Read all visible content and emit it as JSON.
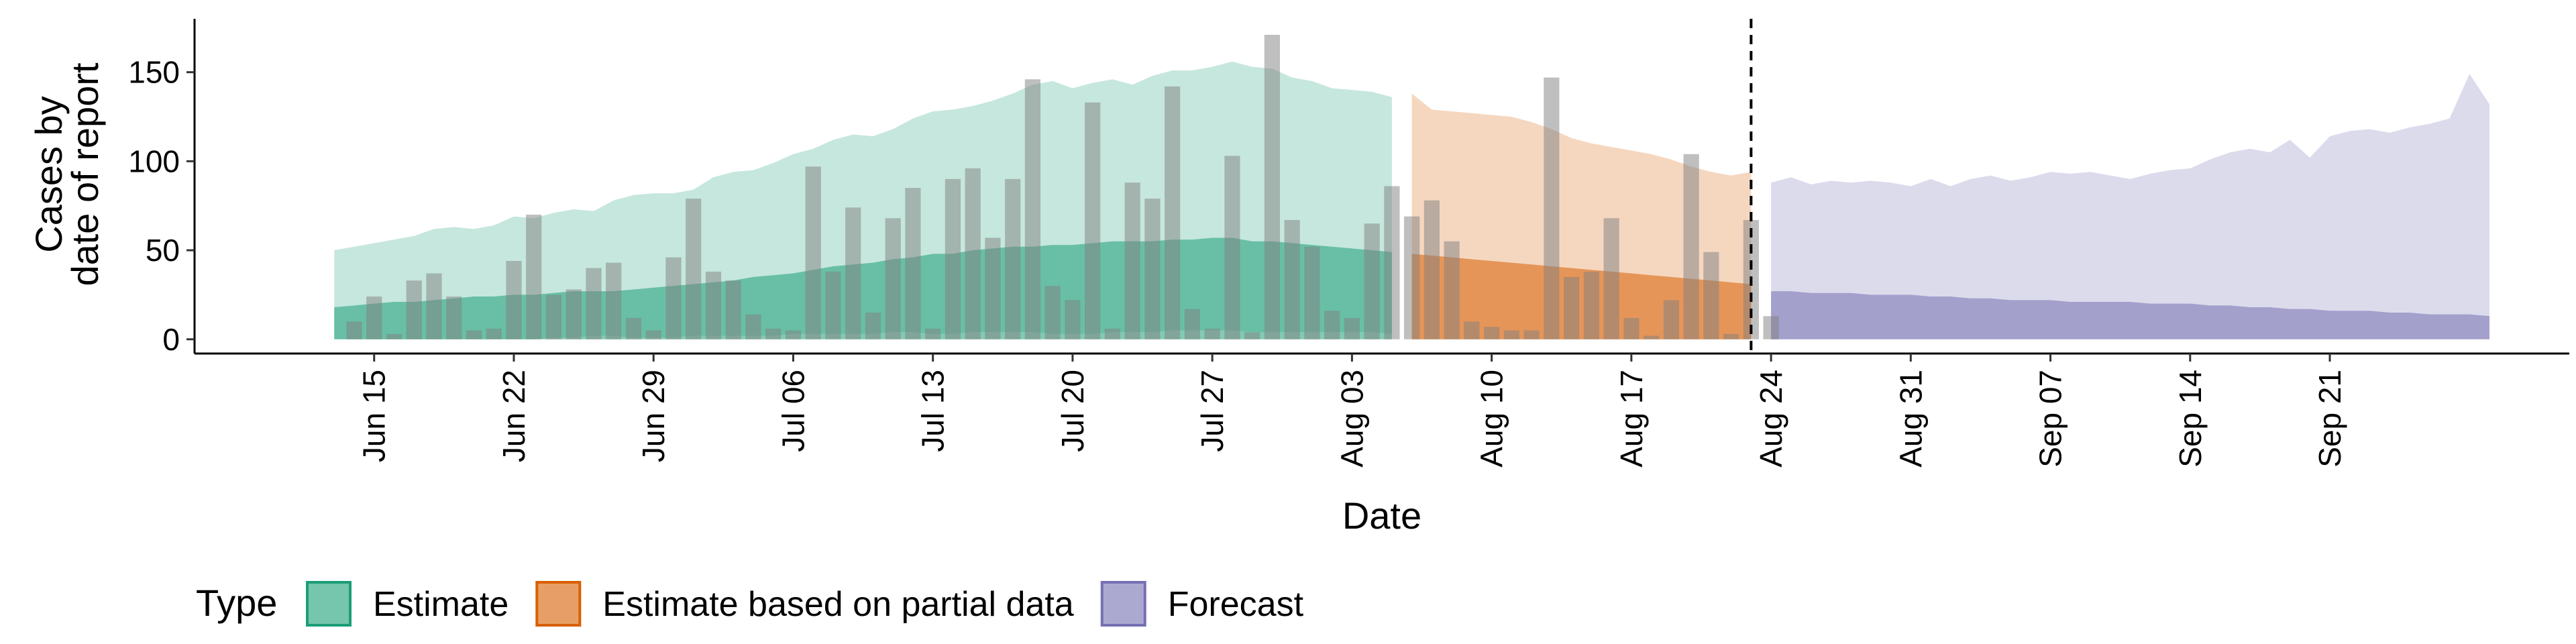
{
  "chart_data": {
    "type": "area",
    "xlabel": "Date",
    "ylabel": [
      "Cases by",
      "date of report"
    ],
    "ylim": [
      -8,
      180
    ],
    "y_ticks": [
      0,
      50,
      100,
      150
    ],
    "x_ticks": [
      {
        "date": "2020-06-15",
        "label": "Jun 15"
      },
      {
        "date": "2020-06-22",
        "label": "Jun 22"
      },
      {
        "date": "2020-06-29",
        "label": "Jun 29"
      },
      {
        "date": "2020-07-06",
        "label": "Jul 06"
      },
      {
        "date": "2020-07-13",
        "label": "Jul 13"
      },
      {
        "date": "2020-07-20",
        "label": "Jul 20"
      },
      {
        "date": "2020-07-27",
        "label": "Jul 27"
      },
      {
        "date": "2020-08-03",
        "label": "Aug 03"
      },
      {
        "date": "2020-08-10",
        "label": "Aug 10"
      },
      {
        "date": "2020-08-17",
        "label": "Aug 17"
      },
      {
        "date": "2020-08-24",
        "label": "Aug 24"
      },
      {
        "date": "2020-08-31",
        "label": "Aug 31"
      },
      {
        "date": "2020-09-07",
        "label": "Sep 07"
      },
      {
        "date": "2020-09-14",
        "label": "Sep 14"
      },
      {
        "date": "2020-09-21",
        "label": "Sep 21"
      }
    ],
    "xlim": [
      "2020-06-06",
      "2020-10-03"
    ],
    "vline_date": "2020-08-23",
    "grid": false,
    "legend": {
      "position": "bottom",
      "title": "Type",
      "entries": [
        {
          "label": "Estimate",
          "color": "#1B9E77"
        },
        {
          "label": "Estimate based on partial data",
          "color": "#D95F02"
        },
        {
          "label": "Forecast",
          "color": "#7570B3"
        }
      ]
    },
    "bars": {
      "color": "#808080",
      "start_date": "2020-06-14",
      "values": [
        10,
        24,
        3,
        33,
        37,
        24,
        5,
        6,
        44,
        70,
        25,
        28,
        40,
        43,
        12,
        5,
        46,
        79,
        38,
        33,
        14,
        6,
        5,
        97,
        38,
        74,
        15,
        68,
        85,
        6,
        90,
        96,
        57,
        90,
        146,
        30,
        22,
        133,
        6,
        88,
        79,
        142,
        17,
        6,
        103,
        4,
        171,
        67,
        52,
        16,
        12,
        65,
        86,
        69,
        78,
        55,
        10,
        7,
        5,
        5,
        147,
        35,
        38,
        68,
        12,
        2,
        22,
        104,
        49,
        3,
        67,
        13
      ]
    },
    "series": [
      {
        "name": "Estimate",
        "color": "#1B9E77",
        "start_date": "2020-06-13",
        "outer_upper": [
          50,
          52,
          54,
          56,
          58,
          62,
          63,
          62,
          64,
          69,
          68,
          71,
          73,
          72,
          78,
          81,
          82,
          82,
          84,
          91,
          94,
          95,
          99,
          104,
          107,
          112,
          115,
          114,
          118,
          124,
          128,
          129,
          131,
          134,
          138,
          143,
          145,
          141,
          144,
          146,
          143,
          148,
          151,
          151,
          153,
          156,
          153,
          152,
          147,
          145,
          141,
          140,
          139,
          136
        ],
        "outer_lower": [
          0,
          0,
          0,
          0,
          0,
          0,
          0,
          0,
          0,
          0,
          0,
          1,
          1,
          2,
          2,
          1,
          1,
          1,
          2,
          2,
          2,
          2,
          2,
          3,
          3,
          3,
          3,
          3,
          4,
          4,
          3,
          3,
          4,
          4,
          4,
          4,
          3,
          3,
          3,
          4,
          4,
          4,
          5,
          5,
          5,
          5,
          4,
          4,
          4,
          4,
          4,
          4,
          4,
          3
        ],
        "inner_upper": [
          18,
          19,
          20,
          21,
          21,
          22,
          23,
          24,
          24,
          25,
          25,
          26,
          27,
          27,
          27,
          28,
          29,
          30,
          31,
          32,
          33,
          35,
          36,
          37,
          39,
          41,
          42,
          43,
          45,
          46,
          48,
          48,
          50,
          51,
          52,
          52,
          53,
          53,
          54,
          55,
          55,
          55,
          56,
          56,
          57,
          57,
          55,
          55,
          54,
          53,
          52,
          51,
          50,
          49
        ],
        "inner_lower": [
          0,
          0,
          0,
          0,
          0,
          0,
          0,
          0,
          0,
          0,
          0,
          0,
          0,
          0,
          0,
          0,
          0,
          0,
          0,
          0,
          0,
          0,
          0,
          0,
          0,
          0,
          0,
          0,
          0,
          0,
          0,
          0,
          0,
          0,
          0,
          0,
          0,
          0,
          0,
          0,
          0,
          0,
          0,
          0,
          0,
          0,
          0,
          0,
          0,
          0,
          0,
          0,
          0,
          0
        ]
      },
      {
        "name": "Estimate based on partial data",
        "color": "#D95F02",
        "start_date": "2020-08-06",
        "outer_upper": [
          138,
          129,
          128,
          127,
          126,
          125,
          122,
          118,
          113,
          110,
          108,
          106,
          104,
          101,
          97,
          94,
          92,
          94
        ],
        "outer_lower": [
          0,
          0,
          0,
          0,
          0,
          0,
          0,
          0,
          0,
          0,
          0,
          0,
          0,
          0,
          0,
          0,
          0,
          0
        ],
        "inner_upper": [
          48,
          47,
          46,
          45,
          44,
          43,
          42,
          41,
          40,
          39,
          38,
          37,
          36,
          35,
          34,
          33,
          32,
          31
        ],
        "inner_lower": [
          0,
          0,
          0,
          0,
          0,
          0,
          0,
          0,
          0,
          0,
          0,
          0,
          0,
          0,
          0,
          0,
          0,
          0
        ]
      },
      {
        "name": "Forecast",
        "color": "#7570B3",
        "start_date": "2020-08-24",
        "outer_upper": [
          88,
          91,
          87,
          89,
          88,
          89,
          88,
          86,
          90,
          86,
          90,
          92,
          89,
          91,
          94,
          93,
          94,
          92,
          90,
          93,
          95,
          96,
          101,
          105,
          107,
          105,
          112,
          102,
          114,
          117,
          118,
          116,
          119,
          121,
          124,
          149,
          132
        ],
        "outer_lower": [
          0,
          0,
          0,
          0,
          0,
          0,
          0,
          0,
          0,
          0,
          0,
          0,
          0,
          0,
          0,
          0,
          0,
          0,
          0,
          0,
          0,
          0,
          0,
          0,
          0,
          0,
          0,
          0,
          0,
          0,
          0,
          0,
          0,
          0,
          0,
          0,
          0
        ],
        "inner_upper": [
          27,
          27,
          26,
          26,
          26,
          25,
          25,
          25,
          24,
          24,
          23,
          23,
          22,
          22,
          22,
          21,
          21,
          21,
          21,
          20,
          20,
          20,
          19,
          19,
          18,
          18,
          17,
          17,
          16,
          16,
          16,
          15,
          15,
          14,
          14,
          14,
          13
        ],
        "inner_lower": [
          0,
          0,
          0,
          0,
          0,
          0,
          0,
          0,
          0,
          0,
          0,
          0,
          0,
          0,
          0,
          0,
          0,
          0,
          0,
          0,
          0,
          0,
          0,
          0,
          0,
          0,
          0,
          0,
          0,
          0,
          0,
          0,
          0,
          0,
          0,
          0,
          0
        ]
      }
    ]
  }
}
